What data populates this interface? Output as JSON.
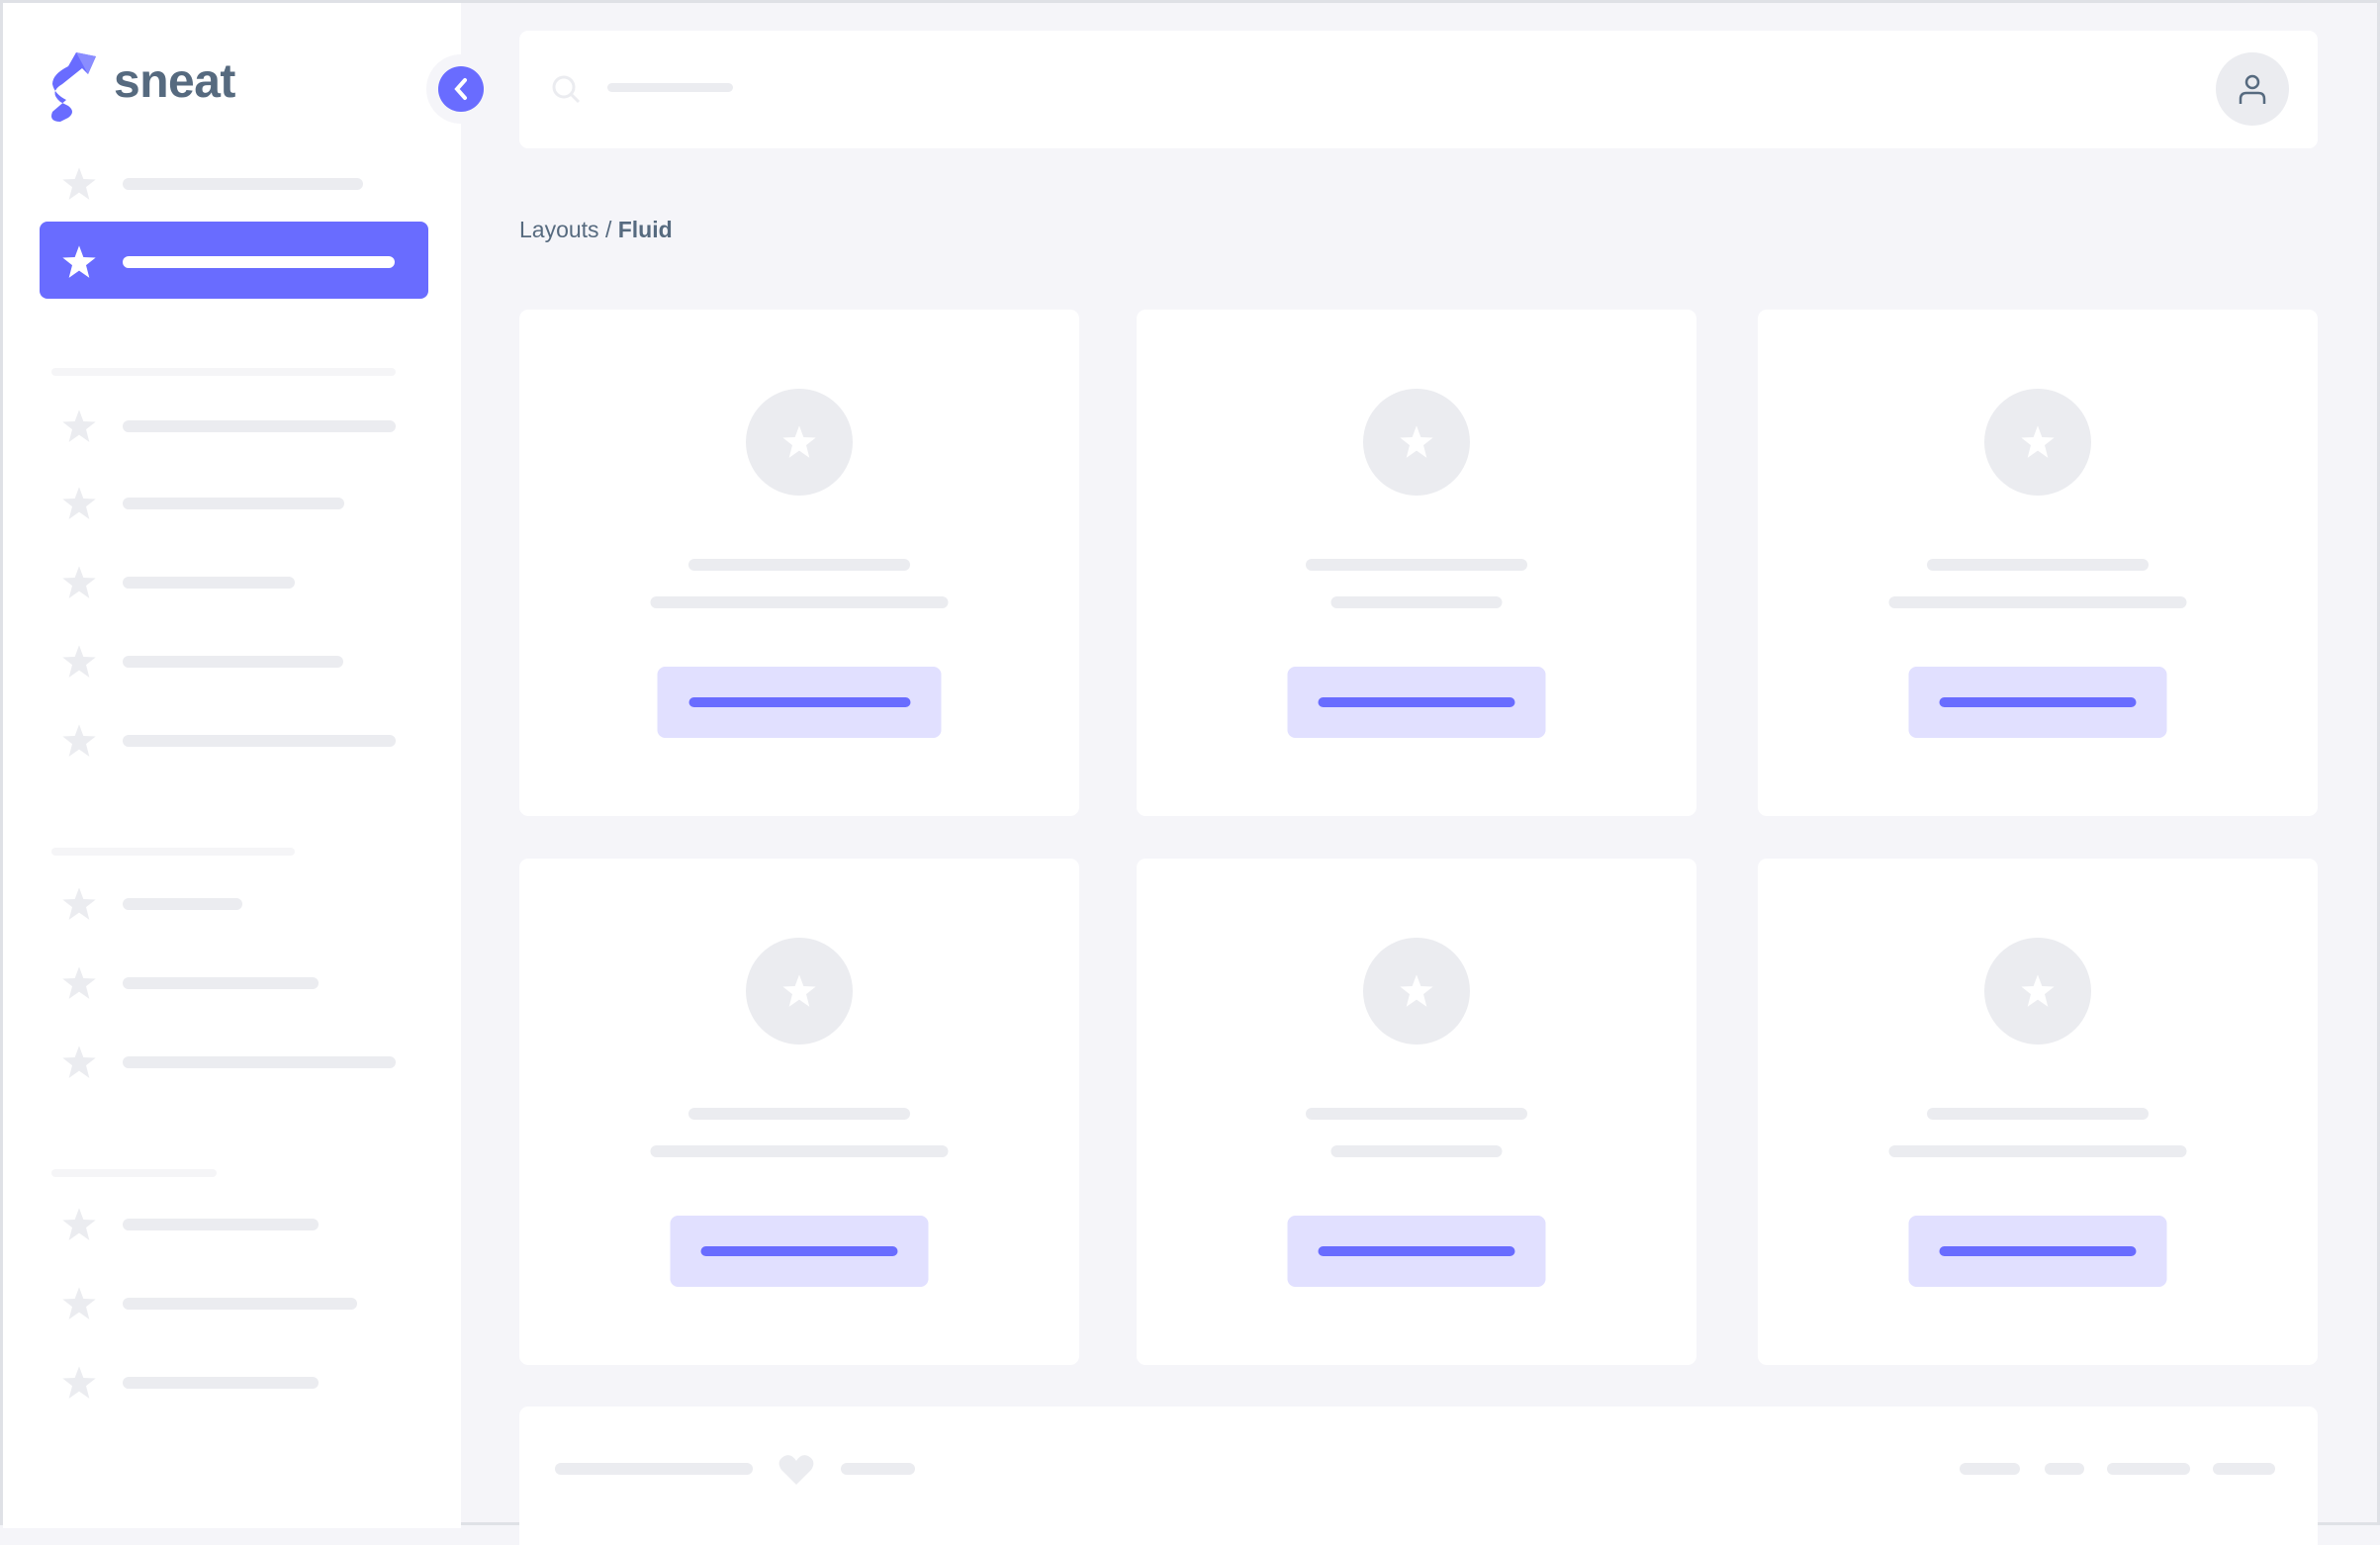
{
  "brand": {
    "name": "sneat",
    "accent": "#696cff",
    "text_color": "#566a7f"
  },
  "breadcrumb": {
    "parent": "Layouts",
    "separator": " / ",
    "current": "Fluid"
  },
  "icons": {
    "logo": "sneat-logo",
    "toggle": "chevron-left-icon",
    "search": "search-icon",
    "user": "user-icon",
    "menu": "star-icon",
    "footer": "heart-icon"
  },
  "sidebar": {
    "active_index": 1
  },
  "colors": {
    "background": "#f5f5f9",
    "skeleton": "#ebecf0",
    "button_bg": "#e1e0ff"
  }
}
